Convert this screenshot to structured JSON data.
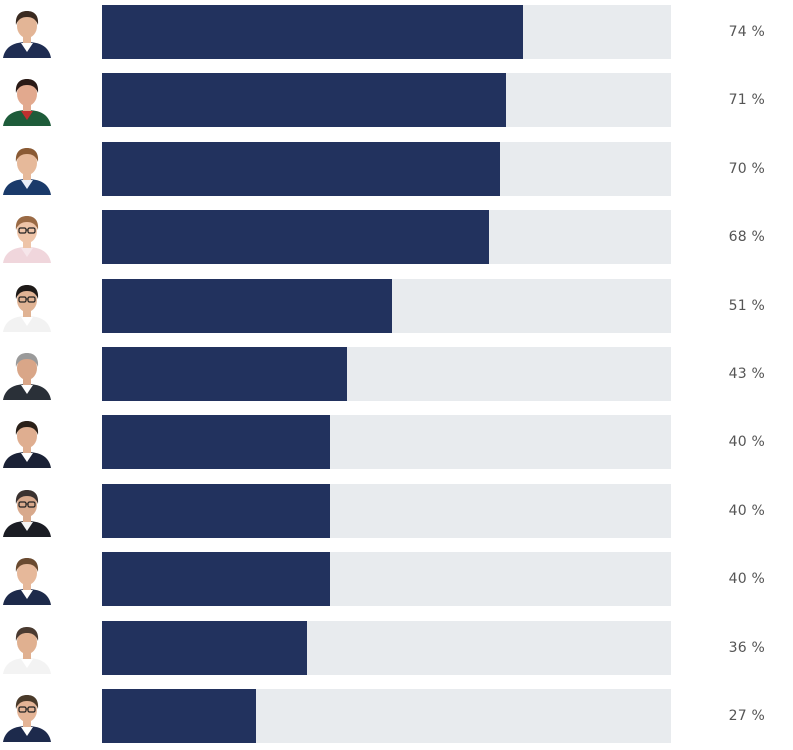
{
  "chart_data": {
    "type": "bar",
    "orientation": "horizontal",
    "unit": "%",
    "xlim": [
      0,
      100
    ],
    "grid": false,
    "legend": "none",
    "colors": {
      "bar": "#22325e",
      "track": "#e8ebee",
      "value_text": "#555555"
    },
    "values": [
      74,
      71,
      70,
      68,
      51,
      43,
      40,
      40,
      40,
      36,
      27
    ],
    "value_labels": [
      "74 %",
      "71 %",
      "70 %",
      "68 %",
      "51 %",
      "43 %",
      "40 %",
      "40 %",
      "40 %",
      "36 %",
      "27 %"
    ],
    "avatars": [
      {
        "hair": "#3a2a20",
        "skin": "#e3b596",
        "clothing": "#1f2d52",
        "shirt": "#ffffff",
        "glasses": false
      },
      {
        "hair": "#2a1a16",
        "skin": "#e2a98e",
        "clothing": "#1e5c3a",
        "shirt": "#c0302f",
        "glasses": false
      },
      {
        "hair": "#8a5a34",
        "skin": "#e6b99a",
        "clothing": "#1a3a6a",
        "shirt": "#e8eef8",
        "glasses": false
      },
      {
        "hair": "#9a6a45",
        "skin": "#eec4a8",
        "clothing": "#f0d6dc",
        "shirt": "#f6e6ea",
        "glasses": true
      },
      {
        "hair": "#1e1a18",
        "skin": "#e0b394",
        "clothing": "#f2f2f2",
        "shirt": "#ffffff",
        "glasses": true
      },
      {
        "hair": "#9a9a9a",
        "skin": "#d9a688",
        "clothing": "#2a3038",
        "shirt": "#ffffff",
        "glasses": false
      },
      {
        "hair": "#2a2018",
        "skin": "#dfae90",
        "clothing": "#1b2236",
        "shirt": "#ffffff",
        "glasses": false
      },
      {
        "hair": "#3a3230",
        "skin": "#d8a98c",
        "clothing": "#1b1d24",
        "shirt": "#f5f5f5",
        "glasses": true
      },
      {
        "hair": "#6a4a30",
        "skin": "#e6b89a",
        "clothing": "#1d2a4a",
        "shirt": "#ffffff",
        "glasses": false
      },
      {
        "hair": "#4a3a30",
        "skin": "#e0b090",
        "clothing": "#f3f3f3",
        "shirt": "#ffffff",
        "glasses": false
      },
      {
        "hair": "#4a3a2a",
        "skin": "#e4b496",
        "clothing": "#1d2a4c",
        "shirt": "#ffffff",
        "glasses": true
      }
    ]
  }
}
